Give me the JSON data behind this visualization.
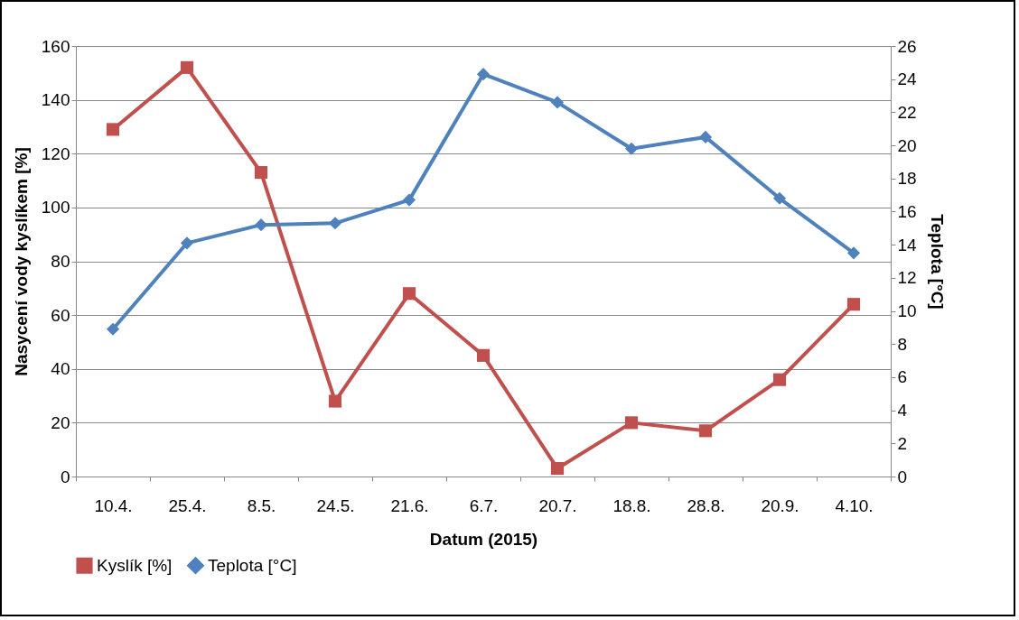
{
  "chart_data": {
    "type": "line",
    "xlabel": "Datum (2015)",
    "ylabel": "Nasycení vody kyslíkem [%]",
    "y2label": "Teplota [°C]",
    "categories": [
      "10.4.",
      "25.4.",
      "8.5.",
      "24.5.",
      "21.6.",
      "6.7.",
      "20.7.",
      "18.8.",
      "28.8.",
      "20.9.",
      "4.10."
    ],
    "series": [
      {
        "name": "Kyslík [%]",
        "color": "#c0504d",
        "marker": "square",
        "values": [
          129,
          152,
          113,
          28,
          68,
          45,
          3,
          20,
          17,
          36,
          64
        ]
      },
      {
        "name": "Teplota [°C]",
        "color": "#4f81bd",
        "marker": "diamond",
        "axis": "y2",
        "values": [
          8.9,
          14.1,
          15.2,
          15.3,
          16.7,
          24.3,
          22.6,
          19.8,
          20.5,
          16.8,
          13.5
        ]
      }
    ],
    "ylim": [
      0,
      160
    ],
    "yticks": [
      0,
      20,
      40,
      60,
      80,
      100,
      120,
      140,
      160
    ],
    "y2lim": [
      0,
      26
    ],
    "y2ticks": [
      0,
      2,
      4,
      6,
      8,
      10,
      12,
      14,
      16,
      18,
      20,
      22,
      24,
      26
    ],
    "grid": "y",
    "legend": "bottom"
  }
}
